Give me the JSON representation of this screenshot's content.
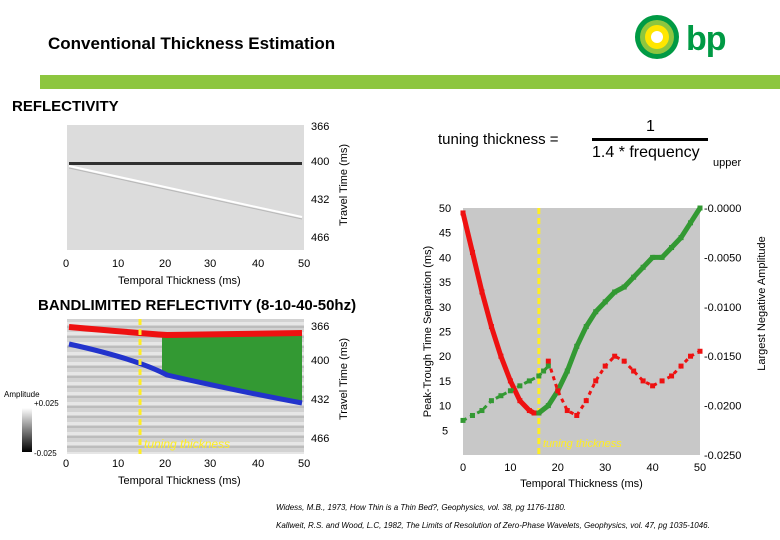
{
  "header": {
    "title": "Conventional Thickness Estimation",
    "logo_text": "bp"
  },
  "reflectivity": {
    "label": "REFLECTIVITY",
    "y_ticks": [
      "366",
      "400",
      "432",
      "466"
    ],
    "x_ticks": [
      "0",
      "10",
      "20",
      "30",
      "40",
      "50"
    ],
    "xlabel": "Temporal Thickness (ms)",
    "ylabel": "Travel Time (ms)"
  },
  "bandlimited": {
    "label": "BANDLIMITED REFLECTIVITY (8-10-40-50hz)",
    "y_ticks": [
      "366",
      "400",
      "432",
      "466"
    ],
    "x_ticks": [
      "0",
      "10",
      "20",
      "30",
      "40",
      "50"
    ],
    "xlabel": "Temporal Thickness (ms)",
    "ylabel": "Travel Time (ms)",
    "annotation": "tuning thickness",
    "amplitude_label": "Amplitude",
    "amplitude_max": "+0.025",
    "amplitude_min": "-0.025"
  },
  "formula": {
    "lhs": "tuning thickness =",
    "numerator": "1",
    "denominator": "1.4 * frequency",
    "subscript": "upper"
  },
  "chart_data": {
    "type": "line",
    "title": "",
    "xlabel": "Temporal Thickness (ms)",
    "ylabel": "Peak-Trough Time Separation (ms)",
    "y2label": "Largest Negative Amplitude",
    "x_ticks": [
      "0",
      "10",
      "20",
      "30",
      "40",
      "50"
    ],
    "y_ticks": [
      "5",
      "10",
      "15",
      "20",
      "25",
      "30",
      "35",
      "40",
      "45",
      "50"
    ],
    "y2_ticks": [
      "-0.0000",
      "-0.0050",
      "-0.0100",
      "-0.0150",
      "-0.0200",
      "-0.0250"
    ],
    "xlim": [
      0,
      50
    ],
    "ylim": [
      0,
      50
    ],
    "y2lim": [
      -0.025,
      0
    ],
    "annotation": "tuning thickness",
    "tuning_x": 16,
    "series": [
      {
        "name": "Peak-Trough Time Separation (red solid)",
        "color": "#ee1111",
        "axis": "left",
        "x": [
          0,
          2,
          4,
          6,
          8,
          10,
          12,
          14,
          15,
          16
        ],
        "y": [
          49,
          41,
          33,
          26,
          20,
          15,
          11,
          9,
          8.5,
          8.5
        ]
      },
      {
        "name": "Peak-Trough Time Separation (green solid)",
        "color": "#339933",
        "axis": "left",
        "x": [
          16,
          18,
          20,
          22,
          24,
          26,
          28,
          30,
          32,
          34,
          36,
          38,
          40,
          42,
          44,
          46,
          48,
          50
        ],
        "y": [
          8.5,
          10,
          13,
          17,
          22,
          26,
          29,
          31,
          33,
          34,
          36,
          38,
          40,
          40,
          42,
          44,
          47,
          50
        ]
      },
      {
        "name": "Largest Negative Amplitude (red dotted)",
        "color": "#ee1111",
        "axis": "right",
        "x": [
          18,
          20,
          22,
          24,
          26,
          28,
          30,
          32,
          34,
          36,
          38,
          40,
          42,
          44,
          46,
          48,
          50
        ],
        "y": [
          -0.0155,
          -0.0185,
          -0.0205,
          -0.021,
          -0.0195,
          -0.0175,
          -0.016,
          -0.015,
          -0.0155,
          -0.0165,
          -0.0175,
          -0.018,
          -0.0175,
          -0.017,
          -0.016,
          -0.015,
          -0.0145
        ]
      },
      {
        "name": "Largest Negative Amplitude (green dotted)",
        "color": "#339933",
        "axis": "right",
        "x": [
          0,
          2,
          4,
          6,
          8,
          10,
          12,
          14,
          16,
          17,
          18
        ],
        "y": [
          -0.0215,
          -0.021,
          -0.0205,
          -0.0195,
          -0.019,
          -0.0185,
          -0.018,
          -0.0175,
          -0.017,
          -0.0165,
          -0.016
        ]
      }
    ]
  },
  "references": [
    "Widess, M.B., 1973, How Thin is a Thin Bed?, Geophysics, vol. 38, pg 1176-1180.",
    "Kallweit, R.S. and Wood, L.C, 1982, The Limits of Resolution of Zero-Phase Wavelets, Geophysics, vol. 47, pg 1035-1046."
  ]
}
